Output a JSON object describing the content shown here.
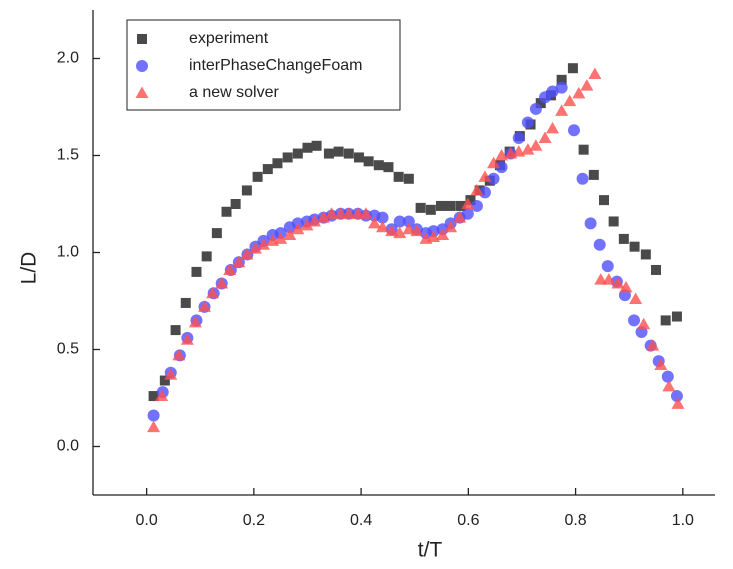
{
  "chart_data": {
    "type": "scatter",
    "xlabel": "t/T",
    "ylabel": "L/D",
    "xlim": [
      -0.1,
      1.06
    ],
    "ylim": [
      -0.25,
      2.25
    ],
    "xticks": [
      {
        "value": 0,
        "label": "0.0"
      },
      0.2,
      0.4,
      0.6,
      0.8,
      {
        "value": 1,
        "label": "1.0"
      }
    ],
    "yticks": [
      {
        "value": 0,
        "label": "0.0"
      },
      0.5,
      {
        "value": 1,
        "label": "1.0"
      },
      1.5,
      {
        "value": 2,
        "label": "2.0"
      }
    ],
    "legend": "upper left",
    "series": [
      {
        "name": "experiment",
        "color": "#4a4a4a",
        "marker": "square",
        "x": [
          0.013,
          0.034,
          0.054,
          0.073,
          0.093,
          0.112,
          0.131,
          0.149,
          0.166,
          0.187,
          0.207,
          0.226,
          0.244,
          0.263,
          0.282,
          0.3,
          0.317,
          0.34,
          0.358,
          0.377,
          0.396,
          0.414,
          0.433,
          0.451,
          0.47,
          0.489,
          0.511,
          0.53,
          0.549,
          0.567,
          0.586,
          0.604,
          0.621,
          0.64,
          0.659,
          0.677,
          0.696,
          0.716,
          0.735,
          0.754,
          0.774,
          0.795,
          0.815,
          0.834,
          0.853,
          0.871,
          0.89,
          0.91,
          0.931,
          0.95,
          0.968,
          0.989
        ],
        "values": [
          0.26,
          0.34,
          0.6,
          0.74,
          0.9,
          0.98,
          1.1,
          1.21,
          1.25,
          1.32,
          1.39,
          1.43,
          1.46,
          1.49,
          1.51,
          1.54,
          1.55,
          1.51,
          1.52,
          1.51,
          1.49,
          1.47,
          1.45,
          1.44,
          1.39,
          1.38,
          1.23,
          1.22,
          1.24,
          1.24,
          1.24,
          1.27,
          1.32,
          1.37,
          1.45,
          1.52,
          1.6,
          1.66,
          1.77,
          1.81,
          1.89,
          1.95,
          1.53,
          1.4,
          1.27,
          1.16,
          1.07,
          1.03,
          0.99,
          0.91,
          0.65,
          0.67
        ]
      },
      {
        "name": "interPhaseChangeFoam",
        "color": "#4f4fff",
        "marker": "circle",
        "x": [
          0.013,
          0.03,
          0.045,
          0.062,
          0.076,
          0.093,
          0.108,
          0.125,
          0.14,
          0.157,
          0.172,
          0.188,
          0.203,
          0.218,
          0.235,
          0.25,
          0.267,
          0.282,
          0.299,
          0.313,
          0.33,
          0.345,
          0.362,
          0.377,
          0.394,
          0.409,
          0.425,
          0.44,
          0.457,
          0.472,
          0.489,
          0.504,
          0.521,
          0.535,
          0.552,
          0.567,
          0.584,
          0.599,
          0.616,
          0.631,
          0.647,
          0.662,
          0.679,
          0.694,
          0.711,
          0.726,
          0.743,
          0.757,
          0.774,
          0.797,
          0.813,
          0.828,
          0.845,
          0.86,
          0.877,
          0.892,
          0.909,
          0.923,
          0.94,
          0.955,
          0.972,
          0.989
        ],
        "values": [
          0.16,
          0.28,
          0.38,
          0.47,
          0.56,
          0.65,
          0.72,
          0.79,
          0.84,
          0.91,
          0.95,
          0.99,
          1.03,
          1.06,
          1.09,
          1.1,
          1.13,
          1.15,
          1.16,
          1.17,
          1.18,
          1.19,
          1.2,
          1.2,
          1.2,
          1.19,
          1.19,
          1.18,
          1.12,
          1.16,
          1.16,
          1.12,
          1.1,
          1.11,
          1.12,
          1.15,
          1.18,
          1.2,
          1.24,
          1.31,
          1.38,
          1.44,
          1.51,
          1.59,
          1.67,
          1.74,
          1.8,
          1.83,
          1.85,
          1.63,
          1.38,
          1.15,
          1.04,
          0.93,
          0.85,
          0.78,
          0.65,
          0.59,
          0.52,
          0.44,
          0.36,
          0.26
        ]
      },
      {
        "name": "a new solver",
        "color": "#ff4f4f",
        "marker": "triangle",
        "x": [
          0.013,
          0.028,
          0.045,
          0.06,
          0.076,
          0.091,
          0.108,
          0.123,
          0.14,
          0.155,
          0.172,
          0.187,
          0.203,
          0.218,
          0.235,
          0.25,
          0.267,
          0.282,
          0.299,
          0.313,
          0.33,
          0.345,
          0.362,
          0.377,
          0.394,
          0.409,
          0.425,
          0.44,
          0.457,
          0.472,
          0.489,
          0.504,
          0.521,
          0.535,
          0.552,
          0.567,
          0.584,
          0.599,
          0.616,
          0.631,
          0.647,
          0.662,
          0.679,
          0.694,
          0.711,
          0.726,
          0.743,
          0.757,
          0.774,
          0.789,
          0.806,
          0.821,
          0.836,
          0.847,
          0.862,
          0.879,
          0.894,
          0.912,
          0.927,
          0.944,
          0.959,
          0.974,
          0.991
        ],
        "values": [
          0.1,
          0.26,
          0.37,
          0.47,
          0.55,
          0.64,
          0.72,
          0.79,
          0.84,
          0.91,
          0.95,
          0.99,
          1.02,
          1.04,
          1.06,
          1.07,
          1.09,
          1.12,
          1.14,
          1.16,
          1.18,
          1.2,
          1.2,
          1.2,
          1.2,
          1.2,
          1.15,
          1.13,
          1.11,
          1.1,
          1.12,
          1.11,
          1.07,
          1.08,
          1.09,
          1.13,
          1.18,
          1.25,
          1.32,
          1.39,
          1.46,
          1.5,
          1.51,
          1.52,
          1.53,
          1.55,
          1.59,
          1.64,
          1.73,
          1.78,
          1.82,
          1.86,
          1.92,
          0.86,
          0.86,
          0.84,
          0.82,
          0.76,
          0.63,
          0.52,
          0.42,
          0.31,
          0.22
        ]
      }
    ]
  }
}
